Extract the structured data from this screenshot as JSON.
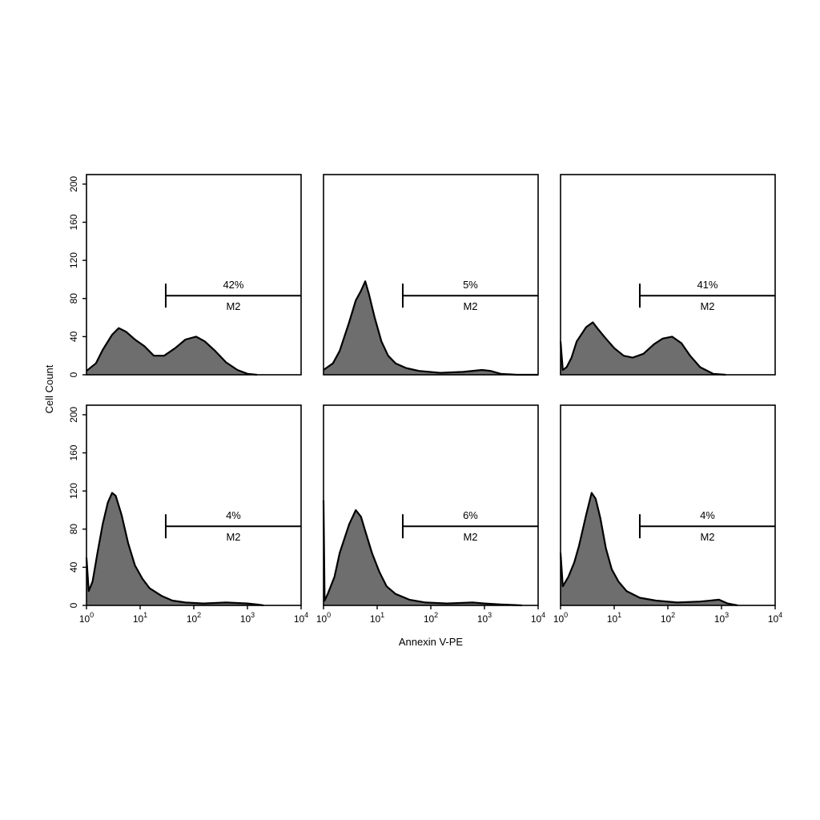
{
  "figure": {
    "ylabel": "Cell Count",
    "xlabel": "Annexin V-PE",
    "y_ticks": [
      "0",
      "40",
      "80",
      "120",
      "160",
      "200"
    ],
    "x_ticks": [
      {
        "base": "10",
        "exp": "0"
      },
      {
        "base": "10",
        "exp": "1"
      },
      {
        "base": "10",
        "exp": "2"
      },
      {
        "base": "10",
        "exp": "3"
      },
      {
        "base": "10",
        "exp": "4"
      }
    ]
  },
  "chart_data": [
    {
      "type": "area",
      "xlabel": "",
      "ylabel": "Cell Count",
      "xscale": "log",
      "xlim": [
        1,
        10000
      ],
      "ylim": [
        0,
        210
      ],
      "gate": {
        "label": "M2",
        "percent": "42%",
        "start": 30,
        "count_level": 83
      },
      "series": [
        {
          "x": [
            1,
            1.5,
            2,
            3,
            4,
            5.5,
            8,
            12,
            18,
            28,
            45,
            70,
            110,
            160,
            250,
            400,
            650,
            1000,
            1500
          ],
          "values": [
            4,
            12,
            26,
            42,
            49,
            45,
            37,
            30,
            20,
            20,
            28,
            37,
            40,
            35,
            25,
            13,
            5,
            1,
            0
          ]
        }
      ]
    },
    {
      "type": "area",
      "xlabel": "",
      "ylabel": "",
      "xscale": "log",
      "xlim": [
        1,
        10000
      ],
      "ylim": [
        0,
        210
      ],
      "gate": {
        "label": "M2",
        "percent": "5%",
        "start": 30,
        "count_level": 83
      },
      "series": [
        {
          "x": [
            1,
            1.5,
            2,
            3,
            4,
            5,
            6,
            7,
            9,
            12,
            16,
            22,
            35,
            60,
            150,
            400,
            900,
            1300,
            2000,
            4000,
            10000
          ],
          "values": [
            5,
            12,
            25,
            55,
            78,
            88,
            98,
            85,
            60,
            35,
            20,
            12,
            7,
            4,
            2,
            3,
            5,
            4,
            1,
            0,
            0
          ]
        }
      ]
    },
    {
      "type": "area",
      "xlabel": "",
      "ylabel": "",
      "xscale": "log",
      "xlim": [
        1,
        10000
      ],
      "ylim": [
        0,
        210
      ],
      "gate": {
        "label": "M2",
        "percent": "41%",
        "start": 30,
        "count_level": 83
      },
      "series": [
        {
          "x": [
            1,
            1.1,
            1.3,
            1.6,
            2,
            3,
            4,
            5,
            7,
            10,
            15,
            22,
            35,
            55,
            80,
            120,
            180,
            260,
            400,
            700,
            1200
          ],
          "values": [
            35,
            5,
            8,
            18,
            35,
            50,
            55,
            48,
            38,
            28,
            20,
            18,
            22,
            32,
            38,
            40,
            33,
            20,
            8,
            1,
            0
          ]
        }
      ]
    },
    {
      "type": "area",
      "xlabel": "",
      "ylabel": "",
      "xscale": "log",
      "xlim": [
        1,
        10000
      ],
      "ylim": [
        0,
        210
      ],
      "gate": {
        "label": "M2",
        "percent": "4%",
        "start": 30,
        "count_level": 83
      },
      "series": [
        {
          "x": [
            1,
            1.1,
            1.3,
            1.6,
            2,
            2.5,
            3,
            3.5,
            4.5,
            6,
            8,
            11,
            15,
            25,
            40,
            70,
            150,
            400,
            1000,
            1500,
            2000
          ],
          "values": [
            50,
            15,
            25,
            55,
            85,
            108,
            118,
            115,
            95,
            65,
            42,
            28,
            18,
            10,
            5,
            3,
            2,
            3,
            2,
            1,
            0
          ]
        }
      ]
    },
    {
      "type": "area",
      "xlabel": "",
      "ylabel": "",
      "xscale": "log",
      "xlim": [
        1,
        10000
      ],
      "ylim": [
        0,
        210
      ],
      "gate": {
        "label": "M2",
        "percent": "6%",
        "start": 30,
        "count_level": 83
      },
      "series": [
        {
          "x": [
            1,
            1.05,
            1.2,
            1.6,
            2,
            3,
            4,
            5,
            6,
            8,
            11,
            15,
            22,
            40,
            80,
            200,
            600,
            1000,
            2000,
            5000
          ],
          "values": [
            110,
            5,
            12,
            30,
            55,
            85,
            100,
            93,
            78,
            55,
            35,
            20,
            12,
            6,
            3,
            2,
            3,
            2,
            1,
            0
          ]
        }
      ]
    },
    {
      "type": "area",
      "xlabel": "",
      "ylabel": "",
      "xscale": "log",
      "xlim": [
        1,
        10000
      ],
      "ylim": [
        0,
        210
      ],
      "gate": {
        "label": "M2",
        "percent": "4%",
        "start": 30,
        "count_level": 83
      },
      "series": [
        {
          "x": [
            1,
            1.1,
            1.4,
            1.8,
            2.2,
            3,
            3.8,
            4.5,
            5.5,
            7,
            9,
            12,
            17,
            30,
            60,
            150,
            400,
            900,
            1300,
            2000
          ],
          "values": [
            55,
            20,
            30,
            45,
            62,
            95,
            118,
            112,
            92,
            60,
            38,
            25,
            15,
            8,
            5,
            3,
            4,
            6,
            2,
            0
          ]
        }
      ]
    }
  ]
}
